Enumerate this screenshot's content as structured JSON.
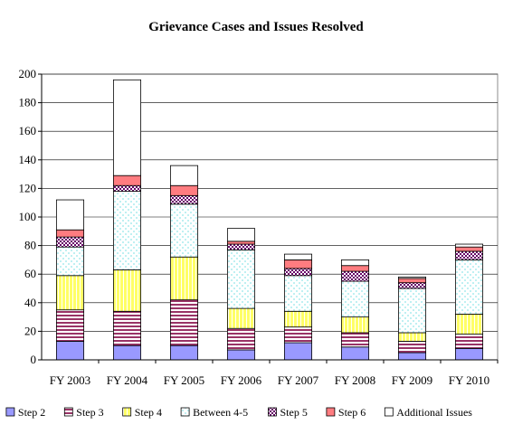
{
  "chart_data": {
    "type": "bar",
    "stacked": true,
    "title": "Grievance Cases and Issues Resolved",
    "xlabel": "",
    "ylabel": "",
    "ylim": [
      0,
      200
    ],
    "yticks": [
      0,
      20,
      40,
      60,
      80,
      100,
      120,
      140,
      160,
      180,
      200
    ],
    "grid": true,
    "legend_position": "bottom",
    "categories": [
      "FY 2003",
      "FY 2004",
      "FY 2005",
      "FY 2006",
      "FY 2007",
      "FY 2008",
      "FY 2009",
      "FY 2010"
    ],
    "series": [
      {
        "name": "Step 2",
        "color": "#9999ff",
        "pattern": "solid",
        "values": [
          13,
          10,
          10,
          7,
          12,
          9,
          5,
          8
        ]
      },
      {
        "name": "Step 3",
        "color": "#993366",
        "pattern": "hlines",
        "values": [
          22,
          24,
          32,
          15,
          11,
          10,
          8,
          10
        ]
      },
      {
        "name": "Step 4",
        "color": "#ffff66",
        "pattern": "vlines",
        "values": [
          24,
          29,
          30,
          14,
          11,
          11,
          6,
          14
        ]
      },
      {
        "name": "Between 4-5",
        "color": "#ccffff",
        "pattern": "dots",
        "values": [
          20,
          55,
          37,
          41,
          25,
          25,
          31,
          38
        ]
      },
      {
        "name": "Step 5",
        "color": "#660066",
        "pattern": "checker",
        "values": [
          7,
          4,
          6,
          4,
          5,
          7,
          4,
          6
        ]
      },
      {
        "name": "Step 6",
        "color": "#ff7c80",
        "pattern": "solid",
        "values": [
          5,
          7,
          7,
          2,
          6,
          4,
          3,
          3
        ]
      },
      {
        "name": "Additional Issues",
        "color": "#ffffff",
        "pattern": "solid",
        "values": [
          21,
          67,
          14,
          9,
          4,
          4,
          1,
          2
        ]
      }
    ]
  }
}
